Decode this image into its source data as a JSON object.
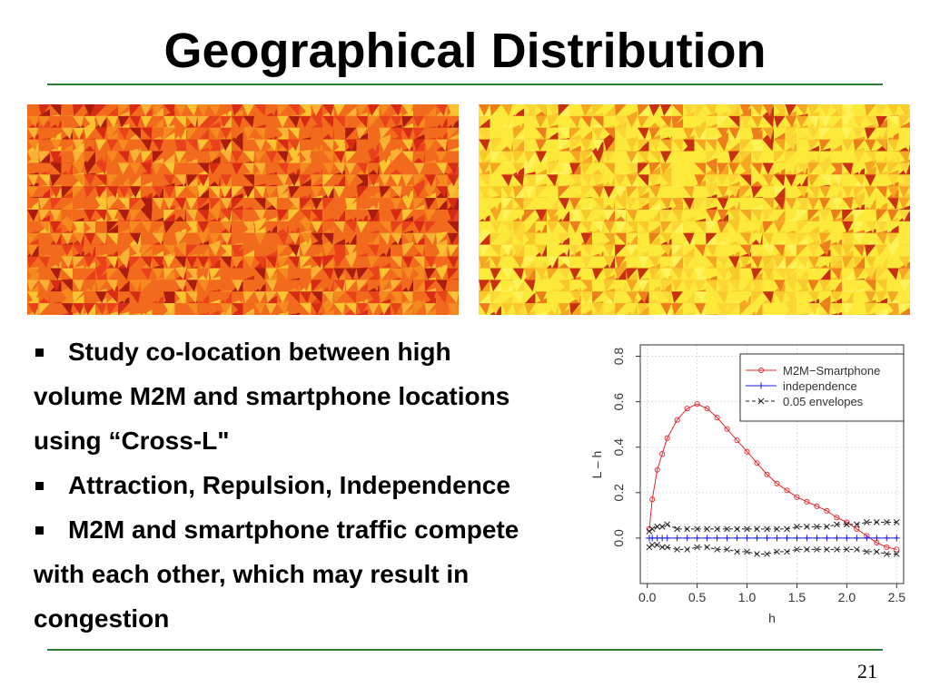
{
  "title": "Geographical Distribution",
  "bullets": [
    {
      "lines": [
        "Study co-location between high",
        "volume M2M and smartphone locations",
        "using “Cross-L\""
      ]
    },
    {
      "lines": [
        "Attraction, Repulsion, Independence"
      ]
    },
    {
      "lines": [
        "M2M and smartphone traffic compete",
        "with each other, which may result in",
        "congestion"
      ]
    }
  ],
  "page_number": "21",
  "chart_data": {
    "type": "line",
    "xlabel": "h",
    "ylabel": "L – h",
    "xlim": [
      -0.07,
      2.57
    ],
    "ylim": [
      -0.2,
      0.85
    ],
    "grid": true,
    "legend": "top-right",
    "xticks": [
      {
        "value": 0,
        "label": "0.0"
      },
      {
        "value": 0.5,
        "label": "0.5"
      },
      {
        "value": 1,
        "label": "1.0"
      },
      {
        "value": 1.5,
        "label": "1.5"
      },
      {
        "value": 2,
        "label": "2.0"
      },
      {
        "value": 2.5,
        "label": "2.5"
      }
    ],
    "yticks": [
      {
        "value": 0,
        "label": "0.0"
      },
      {
        "value": 0.2,
        "label": "0.2"
      },
      {
        "value": 0.4,
        "label": "0.4"
      },
      {
        "value": 0.6,
        "label": "0.6"
      },
      {
        "value": 0.8,
        "label": "0.8"
      }
    ],
    "x": [
      0.02,
      0.05,
      0.1,
      0.15,
      0.2,
      0.3,
      0.4,
      0.5,
      0.6,
      0.7,
      0.8,
      0.9,
      1.0,
      1.1,
      1.2,
      1.3,
      1.4,
      1.5,
      1.6,
      1.7,
      1.8,
      1.9,
      2.0,
      2.1,
      2.2,
      2.3,
      2.4,
      2.5
    ],
    "series": [
      {
        "name": "M2M−Smartphone",
        "color": "#e8242b",
        "marker": "circle",
        "values": [
          0.04,
          0.17,
          0.3,
          0.37,
          0.44,
          0.52,
          0.57,
          0.59,
          0.57,
          0.53,
          0.48,
          0.43,
          0.38,
          0.33,
          0.28,
          0.24,
          0.21,
          0.18,
          0.16,
          0.14,
          0.12,
          0.09,
          0.07,
          0.04,
          0.01,
          -0.02,
          -0.04,
          -0.05
        ]
      },
      {
        "name": "independence",
        "color": "#1a1adb",
        "marker": "plus",
        "values": [
          0,
          0,
          0,
          0,
          0,
          0,
          0,
          0,
          0,
          0,
          0,
          0,
          0,
          0,
          0,
          0,
          0,
          0,
          0,
          0,
          0,
          0,
          0,
          0,
          0,
          0,
          0,
          0
        ]
      },
      {
        "name": "0.05 envelopes",
        "color": "#222222",
        "marker": "cross",
        "values": [
          0.03,
          0.04,
          0.05,
          0.05,
          0.06,
          0.04,
          0.04,
          0.04,
          0.04,
          0.04,
          0.04,
          0.04,
          0.04,
          0.04,
          0.04,
          0.04,
          0.04,
          0.05,
          0.05,
          0.05,
          0.05,
          0.06,
          0.06,
          0.06,
          0.07,
          0.07,
          0.07,
          0.07
        ],
        "lower_values": [
          -0.04,
          -0.03,
          -0.03,
          -0.04,
          -0.04,
          -0.05,
          -0.05,
          -0.04,
          -0.04,
          -0.05,
          -0.05,
          -0.06,
          -0.06,
          -0.07,
          -0.07,
          -0.06,
          -0.06,
          -0.05,
          -0.05,
          -0.05,
          -0.05,
          -0.05,
          -0.05,
          -0.05,
          -0.06,
          -0.06,
          -0.07,
          -0.07
        ]
      }
    ]
  }
}
